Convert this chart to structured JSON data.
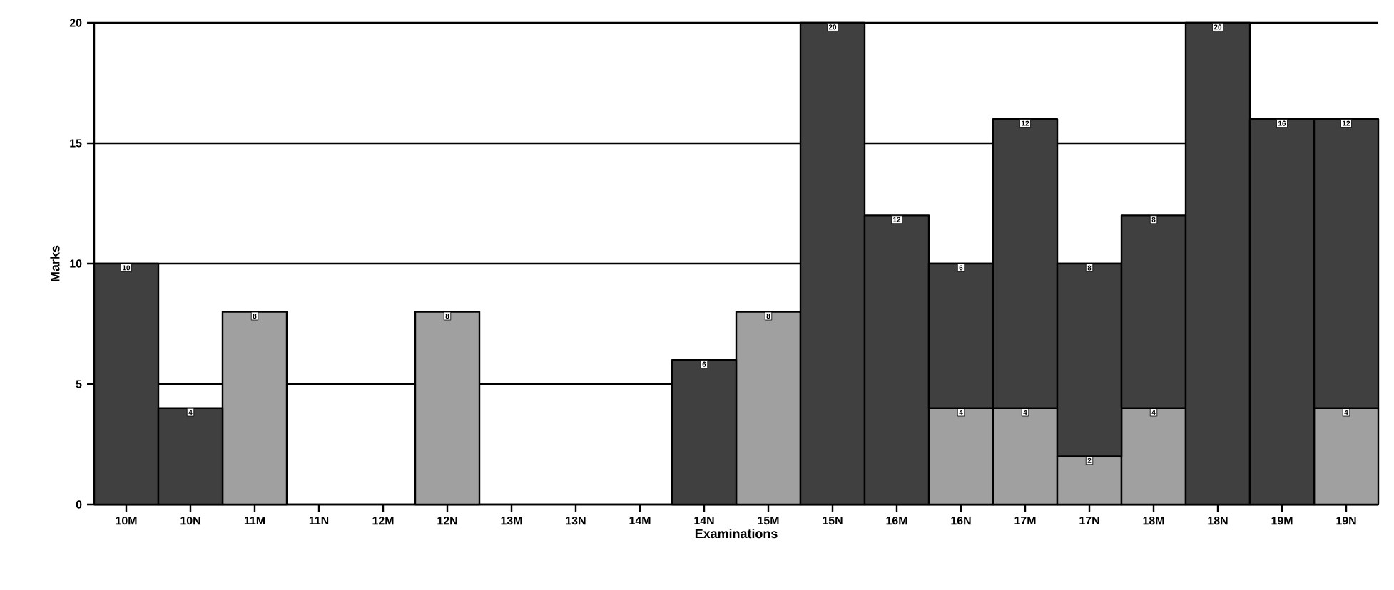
{
  "chart_data": {
    "type": "bar",
    "stacked": true,
    "xlabel": "Examinations",
    "ylabel": "Marks",
    "categories": [
      "10M",
      "10N",
      "11M",
      "11N",
      "12M",
      "12N",
      "13M",
      "13N",
      "14M",
      "14N",
      "15M",
      "15N",
      "16M",
      "16N",
      "17M",
      "17N",
      "18M",
      "18N",
      "19M",
      "19N"
    ],
    "series": [
      {
        "color": "#a0a0a0",
        "values": [
          null,
          null,
          8,
          null,
          null,
          8,
          null,
          null,
          null,
          null,
          8,
          null,
          null,
          4,
          4,
          2,
          4,
          null,
          null,
          4
        ]
      },
      {
        "color": "#404040",
        "values": [
          10,
          4,
          null,
          null,
          null,
          null,
          null,
          null,
          null,
          6,
          null,
          20,
          12,
          6,
          12,
          8,
          8,
          20,
          16,
          12
        ]
      }
    ],
    "ylim": [
      0,
      20
    ],
    "yticks": [
      0,
      5,
      10,
      15,
      20
    ],
    "grid": "y",
    "data_labels": true
  }
}
